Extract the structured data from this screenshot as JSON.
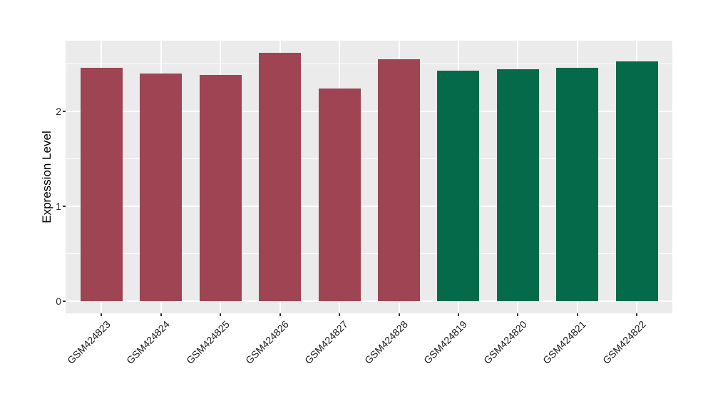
{
  "chart_data": {
    "type": "bar",
    "title": "",
    "xlabel": "",
    "ylabel": "Expression Level",
    "ylim": [
      0,
      2.75
    ],
    "grid": "on",
    "legend": "none",
    "panel_background": "#EBEBEB",
    "gridline_color": "#FFFFFF",
    "categories": [
      "GSM424823",
      "GSM424824",
      "GSM424825",
      "GSM424826",
      "GSM424827",
      "GSM424828",
      "GSM424819",
      "GSM424820",
      "GSM424821",
      "GSM424822"
    ],
    "values": [
      2.46,
      2.4,
      2.38,
      2.62,
      2.24,
      2.55,
      2.43,
      2.44,
      2.46,
      2.53
    ],
    "bar_colors": [
      "#9E4452",
      "#9E4452",
      "#9E4452",
      "#9E4452",
      "#9E4452",
      "#9E4452",
      "#046A4A",
      "#046A4A",
      "#046A4A",
      "#046A4A"
    ],
    "groups": [
      {
        "name": "maroon-group",
        "color": "#9E4452",
        "categories": [
          "GSM424823",
          "GSM424824",
          "GSM424825",
          "GSM424826",
          "GSM424827",
          "GSM424828"
        ]
      },
      {
        "name": "green-group",
        "color": "#046A4A",
        "categories": [
          "GSM424819",
          "GSM424820",
          "GSM424821",
          "GSM424822"
        ]
      }
    ],
    "y_ticks": [
      {
        "label": "0",
        "value": 0
      },
      {
        "label": "1",
        "value": 1
      },
      {
        "label": "2",
        "value": 2
      }
    ],
    "y_minor_ticks": [
      0.5,
      1.5,
      2.5
    ]
  }
}
